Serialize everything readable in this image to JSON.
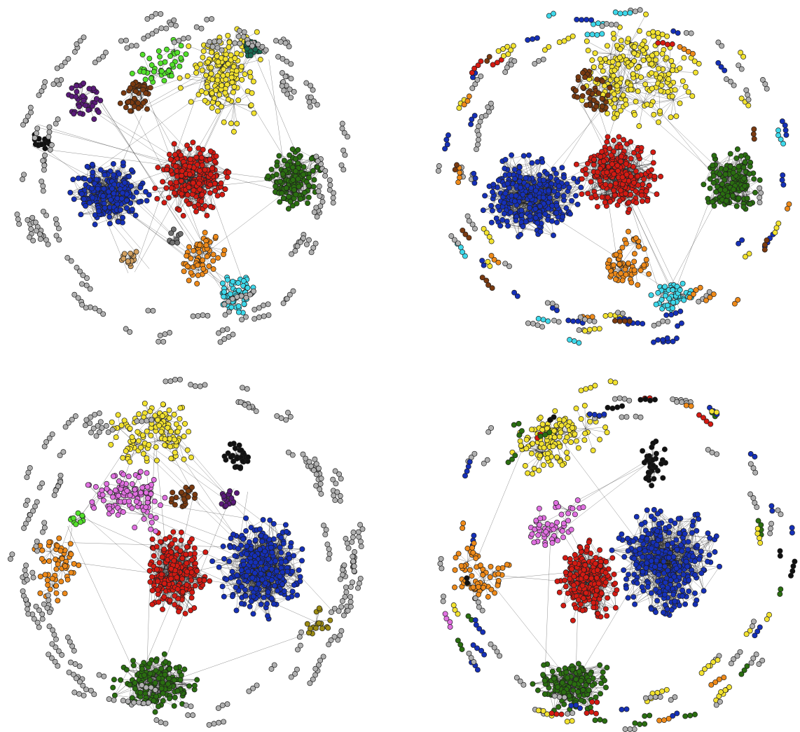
{
  "figure": {
    "colors": {
      "blue": "#1530b8",
      "red": "#d41a12",
      "dark_green": "#2a6e10",
      "yellow": "#f2e230",
      "orange": "#ee8a1a",
      "cyan": "#3ed8ea",
      "brown": "#7a3a10",
      "purple": "#5a1a7a",
      "lime": "#52e02a",
      "teal": "#1a6a52",
      "black": "#111111",
      "tan": "#d2a060",
      "gray": "#b0b0b0",
      "dark_gray": "#707070",
      "violet": "#e070e0",
      "olive": "#9a8a12"
    },
    "panels": [
      {
        "id": "top-left",
        "clusters": [
          {
            "color": "blue",
            "nodes": 230
          },
          {
            "color": "red",
            "nodes": 230
          },
          {
            "color": "dark_green",
            "nodes": 150
          },
          {
            "color": "yellow",
            "nodes": 160
          },
          {
            "color": "orange",
            "nodes": 60
          },
          {
            "color": "cyan",
            "nodes": 60
          },
          {
            "color": "brown",
            "nodes": 45
          },
          {
            "color": "purple",
            "nodes": 40
          },
          {
            "color": "lime",
            "nodes": 45
          },
          {
            "color": "teal",
            "nodes": 18
          },
          {
            "color": "black",
            "nodes": 14
          },
          {
            "color": "tan",
            "nodes": 16
          },
          {
            "color": "dark_gray",
            "nodes": 10
          }
        ],
        "peripheral_colors": [
          "gray"
        ]
      },
      {
        "id": "top-right",
        "clusters": [
          {
            "color": "blue",
            "nodes": 280
          },
          {
            "color": "red",
            "nodes": 240
          },
          {
            "color": "dark_green",
            "nodes": 150
          },
          {
            "color": "yellow",
            "nodes": 220
          },
          {
            "color": "orange",
            "nodes": 65
          },
          {
            "color": "cyan",
            "nodes": 55
          },
          {
            "color": "brown",
            "nodes": 45
          }
        ],
        "peripheral_colors": [
          "gray",
          "blue",
          "yellow",
          "orange",
          "brown",
          "cyan",
          "red",
          "dark_green"
        ]
      },
      {
        "id": "bottom-left",
        "clusters": [
          {
            "color": "blue",
            "nodes": 290
          },
          {
            "color": "red",
            "nodes": 220
          },
          {
            "color": "dark_green",
            "nodes": 150
          },
          {
            "color": "yellow",
            "nodes": 120
          },
          {
            "color": "violet",
            "nodes": 110
          },
          {
            "color": "orange",
            "nodes": 60
          },
          {
            "color": "black",
            "nodes": 30
          },
          {
            "color": "brown",
            "nodes": 25
          },
          {
            "color": "purple",
            "nodes": 18
          },
          {
            "color": "lime",
            "nodes": 10
          },
          {
            "color": "olive",
            "nodes": 16
          }
        ],
        "peripheral_colors": [
          "gray"
        ]
      },
      {
        "id": "bottom-right",
        "clusters": [
          {
            "color": "blue",
            "nodes": 330
          },
          {
            "color": "red",
            "nodes": 230
          },
          {
            "color": "dark_green",
            "nodes": 150
          },
          {
            "color": "yellow",
            "nodes": 130
          },
          {
            "color": "violet",
            "nodes": 55
          },
          {
            "color": "orange",
            "nodes": 60
          },
          {
            "color": "black",
            "nodes": 30
          }
        ],
        "peripheral_colors": [
          "gray",
          "blue",
          "yellow",
          "dark_green",
          "black",
          "orange",
          "red",
          "violet"
        ]
      }
    ]
  }
}
